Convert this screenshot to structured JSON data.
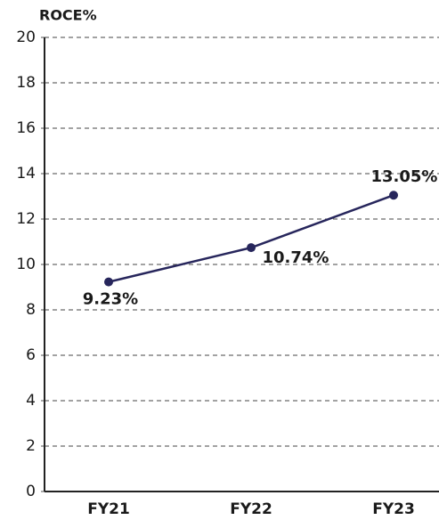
{
  "chart_data": {
    "type": "line",
    "y_label": "ROCE%",
    "categories": [
      "FY21",
      "FY22",
      "FY23"
    ],
    "series": [
      {
        "name": "ROCE",
        "color": "#27265c",
        "values": [
          9.23,
          10.74,
          13.05
        ],
        "value_labels": [
          "9.23%",
          "10.74%",
          "13.05%"
        ]
      }
    ],
    "ylim": [
      0,
      20
    ],
    "yticks": [
      0,
      2,
      4,
      6,
      8,
      10,
      12,
      14,
      16,
      18,
      20
    ],
    "grid": true
  }
}
